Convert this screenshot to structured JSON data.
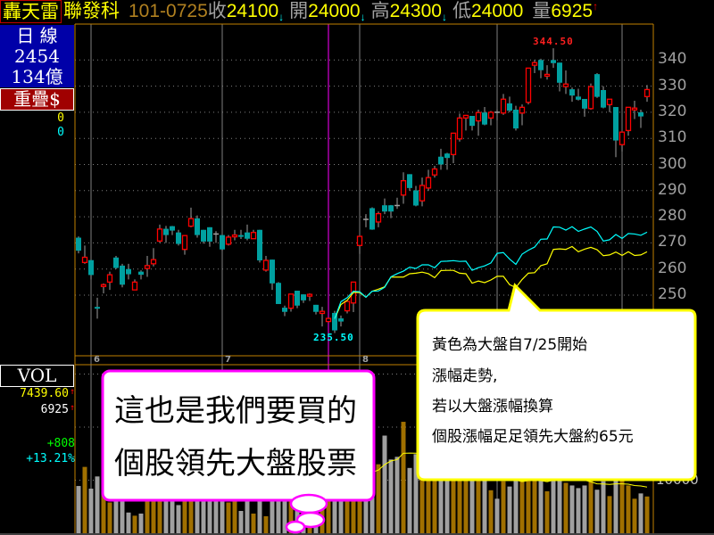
{
  "header": {
    "badge": "轟天雷",
    "stock_name": "聯發科",
    "date": "101-0725",
    "close_label": "收",
    "close_value": "24100",
    "close_arrow": "↓",
    "open_label": "開",
    "open_value": "24000",
    "open_arrow": "↓",
    "high_label": "高",
    "high_value": "24300",
    "high_arrow": "↓",
    "low_label": "低",
    "low_value": "24000",
    "volume_label": "量",
    "volume_value": "6925",
    "volume_arrow": "↑"
  },
  "left_panel": {
    "period": "日 線",
    "code": "2454",
    "capital": "134億",
    "overlay_button": "重疊$",
    "value_a": "0",
    "value_b": "0",
    "vol_label": "VOL",
    "vol_ma": "7439.60",
    "vol_ma_arrow": "↑",
    "vol_today": "6925",
    "vol_today_arrow": "↑",
    "change": "+808",
    "change_pct": "+13.21%"
  },
  "colors": {
    "up": "#ff0000",
    "down": "#00a0a0",
    "wick": "#a0a0a0",
    "vol_up": "#a07000",
    "vol_down": "#a0a0a0",
    "stock_overlay": "#00ffff",
    "market_overlay": "#ffff00",
    "frame": "#c08000",
    "marker_line": "#ff00ff"
  },
  "callouts": {
    "pink": [
      "這也是我們要買的",
      "個股領先大盤股票"
    ],
    "yellow": [
      "黃色為大盤自7/25開始",
      "漲幅走勢,",
      "若以大盤漲幅換算",
      "個股漲幅足足領先大盤約65元"
    ]
  },
  "chart_data": {
    "type": "candlestick",
    "price_axis": {
      "ticks": [
        340,
        330,
        320,
        310,
        300,
        290,
        280,
        270,
        260,
        250
      ],
      "tick_labels": [
        "340",
        "330",
        "320",
        "310",
        "300",
        "290",
        "280",
        "270",
        "260",
        "250"
      ],
      "grid": true
    },
    "month_labels": [
      {
        "label": "6",
        "index": 2
      },
      {
        "label": "7",
        "index": 23
      },
      {
        "label": "8",
        "index": 45
      }
    ],
    "month_lines_at_index": [
      2,
      23,
      45,
      67,
      87
    ],
    "marker_index": 40,
    "high_label": "344.50",
    "low_label": "235.50",
    "ohlc": [
      [
        272,
        272.5,
        266,
        267
      ],
      [
        262.5,
        269,
        262,
        264.5
      ],
      [
        263.4,
        263.4,
        256,
        257.7
      ],
      [
        245.5,
        249,
        241,
        245
      ],
      [
        253.7,
        254.5,
        250.7,
        254
      ],
      [
        255,
        259,
        252,
        257.8
      ],
      [
        264.4,
        265,
        260,
        260.4
      ],
      [
        261.3,
        262,
        253,
        254
      ],
      [
        260,
        262,
        256,
        258
      ],
      [
        252,
        256,
        252,
        255
      ],
      [
        259,
        259.5,
        256,
        257.8
      ],
      [
        260.2,
        265,
        257,
        261.3
      ],
      [
        262,
        268,
        261,
        263.6
      ],
      [
        270.7,
        277,
        270,
        275.3
      ],
      [
        275.4,
        276.5,
        270,
        273
      ],
      [
        276.4,
        276.5,
        273,
        274.7
      ],
      [
        274,
        275,
        269,
        269.6
      ],
      [
        267.5,
        273,
        265.5,
        272.8
      ],
      [
        276.4,
        283.5,
        276,
        279.3
      ],
      [
        279.4,
        280.5,
        272,
        273
      ],
      [
        275,
        275,
        269.7,
        270.5
      ],
      [
        276,
        276,
        268.5,
        270.5
      ],
      [
        273.4,
        274.5,
        270,
        273.4
      ],
      [
        273,
        273,
        267,
        267.5
      ],
      [
        269.5,
        273,
        269,
        272.2
      ],
      [
        272.7,
        275,
        271,
        273
      ],
      [
        273,
        275,
        271.5,
        272.7
      ],
      [
        274,
        277,
        271,
        271.6
      ],
      [
        271.6,
        275,
        271.6,
        274
      ],
      [
        275,
        275,
        262.5,
        263.3
      ],
      [
        259.6,
        265,
        259,
        263.3
      ],
      [
        263.6,
        263.6,
        252,
        254.5
      ],
      [
        254.7,
        255,
        246.6,
        246.6
      ],
      [
        245.2,
        246,
        242,
        243.6
      ],
      [
        245,
        250.4,
        243.7,
        250.4
      ],
      [
        251.7,
        251.7,
        245,
        246
      ],
      [
        250.3,
        250.3,
        247,
        248
      ],
      [
        249.8,
        250.7,
        247.8,
        250.3
      ],
      [
        246.3,
        246.3,
        242.6,
        243.6
      ],
      [
        243,
        245.5,
        238,
        243.8
      ],
      [
        239.9,
        241.5,
        239.5,
        241.1
      ],
      [
        243.2,
        244,
        235.5,
        236.5
      ],
      [
        241.1,
        242.2,
        238,
        239.9
      ],
      [
        244,
        248,
        243,
        247.6
      ],
      [
        247,
        255,
        243.5,
        255
      ],
      [
        269,
        272.5,
        265.8,
        272.5
      ],
      [
        279,
        281,
        276,
        279
      ],
      [
        283.3,
        283.6,
        275,
        275.1
      ],
      [
        278,
        282,
        276,
        281.2
      ],
      [
        284.4,
        287,
        281,
        282
      ],
      [
        284.4,
        284.5,
        279.5,
        282
      ],
      [
        284.3,
        287.3,
        283,
        284.3
      ],
      [
        288.3,
        297,
        285,
        293.8
      ],
      [
        296.3,
        296.3,
        290,
        291
      ],
      [
        290.1,
        291.8,
        284,
        284.3
      ],
      [
        286.1,
        295,
        284,
        292
      ],
      [
        291,
        298,
        290,
        295
      ],
      [
        296,
        299.5,
        295,
        298.3
      ],
      [
        303,
        306,
        298,
        300
      ],
      [
        304.2,
        304.5,
        298,
        302.5
      ],
      [
        303.8,
        312,
        300.5,
        312
      ],
      [
        309.8,
        319.5,
        308.8,
        317.8
      ],
      [
        317.8,
        319,
        313,
        318.8
      ],
      [
        318.6,
        318.6,
        313,
        314.8
      ],
      [
        316.7,
        321,
        311,
        319.9
      ],
      [
        319.9,
        322,
        315,
        315.3
      ],
      [
        317.8,
        320.5,
        315,
        320
      ],
      [
        320,
        321,
        317,
        320
      ],
      [
        319.7,
        327,
        319,
        325
      ],
      [
        323.4,
        326,
        320,
        320.6
      ],
      [
        321,
        322.5,
        313,
        313.8
      ],
      [
        319.7,
        323,
        315,
        321.9
      ],
      [
        323.8,
        337,
        323,
        336.9
      ],
      [
        338,
        340,
        335,
        339
      ],
      [
        340,
        340.5,
        333,
        336.1
      ],
      [
        334,
        338,
        332.5,
        334.5
      ],
      [
        340,
        344.5,
        337,
        338.8
      ],
      [
        339,
        339,
        328,
        331.3
      ],
      [
        329.8,
        336,
        327,
        330.8
      ],
      [
        328.8,
        329.5,
        324,
        326.4
      ],
      [
        326,
        329,
        324.5,
        324.8
      ],
      [
        325.1,
        325.1,
        318.3,
        321.4
      ],
      [
        321.4,
        331,
        321,
        329.8
      ],
      [
        334.6,
        335,
        325.5,
        325.9
      ],
      [
        328.5,
        330,
        321.5,
        321.8
      ],
      [
        322.9,
        325,
        320,
        325
      ],
      [
        322,
        322,
        302.8,
        309.2
      ],
      [
        307.6,
        312.4,
        305,
        312.4
      ],
      [
        313,
        322,
        311,
        321.9
      ],
      [
        320.9,
        324.4,
        317.4,
        321.6
      ],
      [
        320,
        321,
        314,
        318.4
      ],
      [
        326,
        330.4,
        324,
        328.7
      ]
    ],
    "overlay_start_index": 41,
    "overlay_stock": [
      241,
      247.5,
      249,
      251.5,
      251.3,
      249.2,
      251.5,
      251.6,
      253,
      257,
      258.2,
      259.2,
      260.7,
      260.2,
      261.6,
      261.6,
      260.5,
      262.9,
      263,
      263.2,
      262.9,
      263,
      259.5,
      260.5,
      261.2,
      262.3,
      266,
      266.3,
      263.8,
      261.8,
      265.7,
      267.2,
      268.4,
      271.4,
      271.5,
      276.1,
      276,
      274.9,
      276.2,
      274.4,
      275.3,
      276.1,
      274.4,
      270.7,
      271.2,
      273.2,
      271.7,
      273.6,
      273.4,
      272.9,
      274.1
    ],
    "overlay_market": [
      241,
      246.4,
      248,
      251,
      251,
      249.2,
      251.5,
      252.3,
      253.2,
      256.9,
      256.9,
      256.9,
      258.2,
      258.4,
      258.8,
      258.2,
      256.7,
      259.4,
      259.5,
      259.5,
      258.4,
      258.2,
      254.6,
      255.4,
      254.8,
      255.8,
      257.2,
      257.2,
      254,
      252.9,
      256,
      258.4,
      258.6,
      261.3,
      262,
      267.5,
      267.7,
      267.5,
      268.6,
      266.6,
      267.6,
      268.3,
      267.4,
      265.1,
      265.4,
      266.5,
      265.2,
      266.6,
      265.2,
      265.4,
      266.6
    ],
    "volume_axis": {
      "tick_labels": [
        "10000"
      ],
      "grid": true
    },
    "volume": [
      8900,
      12500,
      8400,
      10700,
      9000,
      5800,
      9500,
      9000,
      3900,
      3300,
      3700,
      8000,
      9000,
      11000,
      12000,
      9500,
      5300,
      8500,
      10500,
      11000,
      9000,
      9500,
      7000,
      8500,
      5800,
      7500,
      4200,
      8000,
      3700,
      9000,
      3200,
      9500,
      11000,
      9000,
      10000,
      8000,
      7000,
      8500,
      9000,
      8000,
      7000,
      12000,
      9000,
      12000,
      15000,
      18000,
      14000,
      11000,
      13000,
      18400,
      13900,
      14400,
      21000,
      12300,
      14900,
      13000,
      15000,
      13000,
      12000,
      14000,
      15000,
      13000,
      11000,
      10000,
      12000,
      10000,
      8100,
      6500,
      9800,
      8800,
      11000,
      10000,
      13000,
      12000,
      10000,
      7900,
      11000,
      10000,
      9500,
      9000,
      8500,
      9000,
      10000,
      8200,
      9800,
      7000,
      12000,
      10000,
      9000,
      6500,
      7500,
      6925
    ]
  }
}
